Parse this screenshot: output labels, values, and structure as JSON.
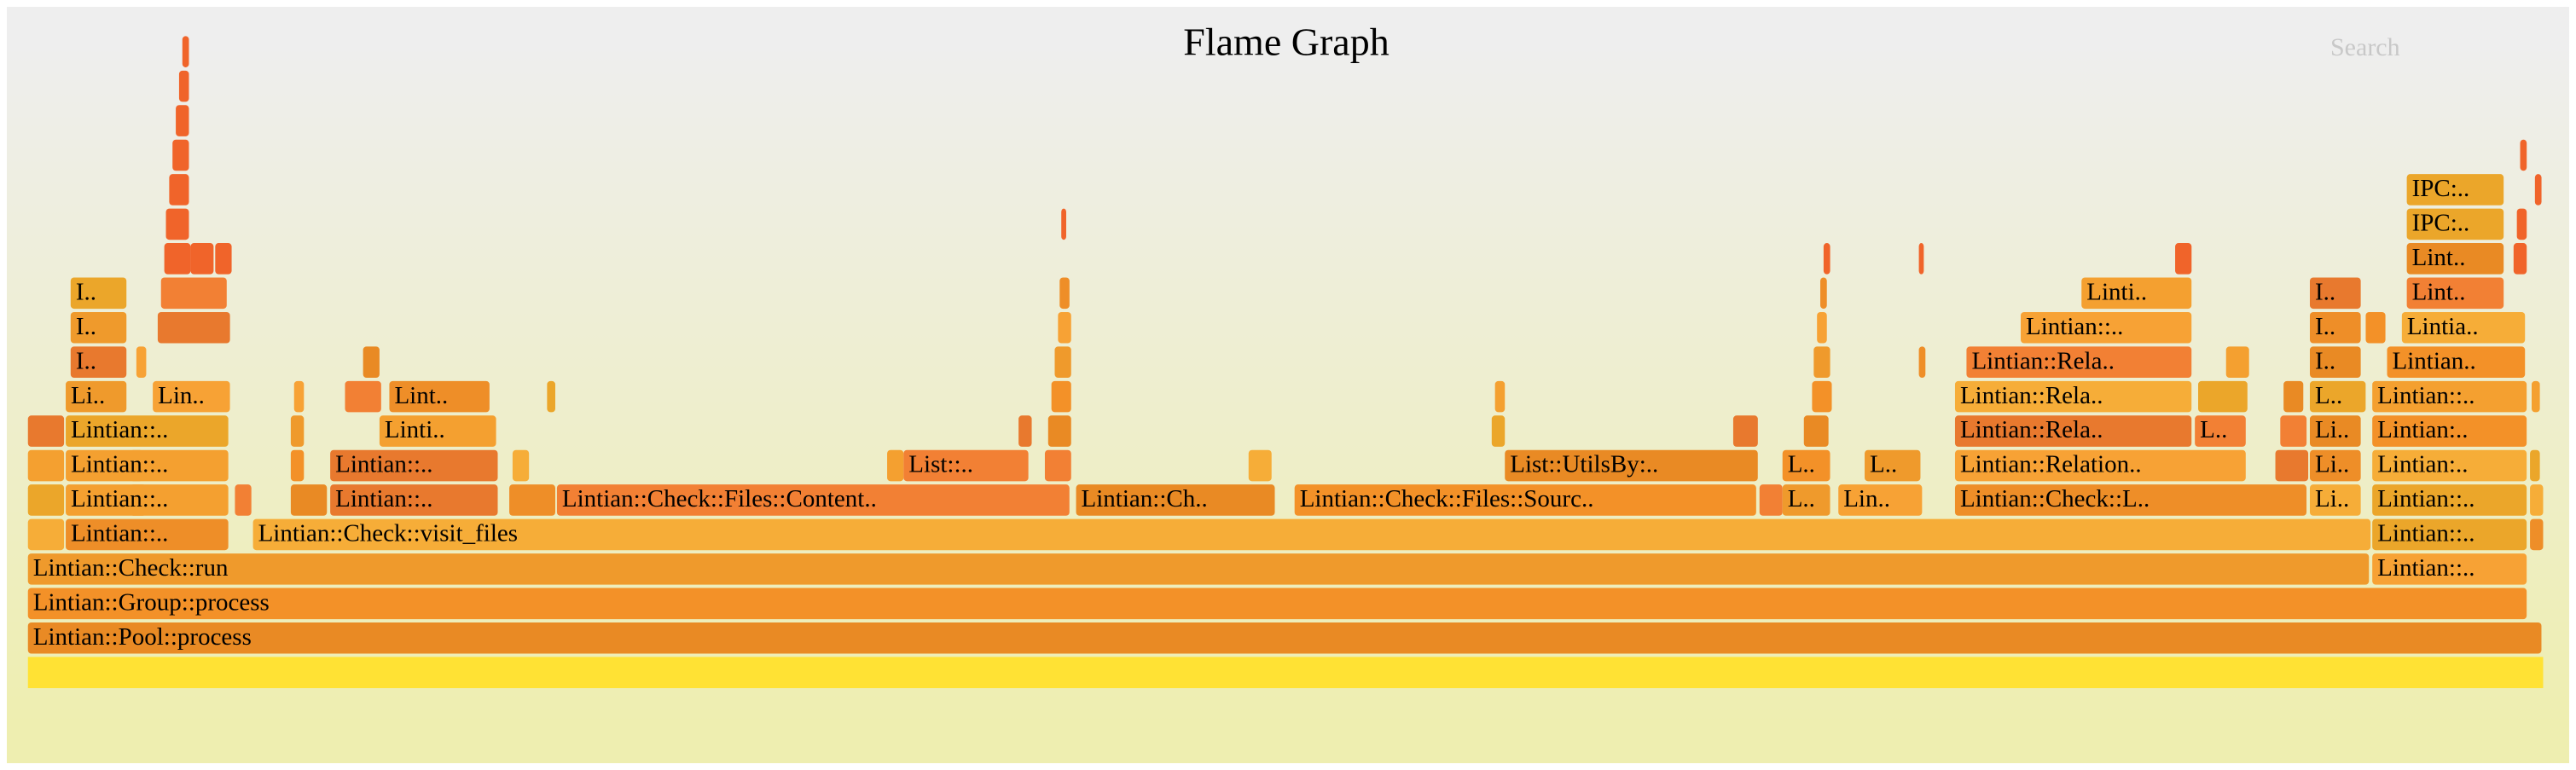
{
  "header": {
    "title": "Flame Graph",
    "search": "Search"
  },
  "frames": [
    {
      "label": "Lintian::Pool::process"
    },
    {
      "label": "Lintian::Group::process"
    },
    {
      "label": "Lintian::Check::run"
    },
    {
      "label": "Lintian::.."
    },
    {
      "label": "Lintian::.."
    },
    {
      "label": "Lintian::Check::visit_files"
    },
    {
      "label": "Lintian::.."
    },
    {
      "label": "Lintian::.."
    },
    {
      "label": "Lintian::.."
    },
    {
      "label": "Lintian::Check::Files::Content.."
    },
    {
      "label": "Lintian::Ch.."
    },
    {
      "label": "Lintian::Check::Files::Sourc.."
    },
    {
      "label": "L.."
    },
    {
      "label": "Lin.."
    },
    {
      "label": "Lintian::Check::L.."
    },
    {
      "label": "Li.."
    },
    {
      "label": "Lintian::.."
    },
    {
      "label": "Lintian::.."
    },
    {
      "label": "Lintian::.."
    },
    {
      "label": "List::.."
    },
    {
      "label": "List::UtilsBy:.."
    },
    {
      "label": "L.."
    },
    {
      "label": "L.."
    },
    {
      "label": "Lintian::Relation.."
    },
    {
      "label": "Li.."
    },
    {
      "label": "Lintian:.."
    },
    {
      "label": "Lintian::.."
    },
    {
      "label": "Linti.."
    },
    {
      "label": "Lintian::Rela.."
    },
    {
      "label": "L.."
    },
    {
      "label": "Li.."
    },
    {
      "label": "Lintian:.."
    },
    {
      "label": "Li.."
    },
    {
      "label": "Lin.."
    },
    {
      "label": "Lint.."
    },
    {
      "label": "Lintian::Rela.."
    },
    {
      "label": "L.."
    },
    {
      "label": "Lintian::.."
    },
    {
      "label": "I.."
    },
    {
      "label": "Lintian::Rela.."
    },
    {
      "label": "I.."
    },
    {
      "label": "Lintian.."
    },
    {
      "label": "I.."
    },
    {
      "label": "Lintian::.."
    },
    {
      "label": "I.."
    },
    {
      "label": "Lintia.."
    },
    {
      "label": "I.."
    },
    {
      "label": "Linti.."
    },
    {
      "label": "I.."
    },
    {
      "label": "Lint.."
    },
    {
      "label": "Lint.."
    },
    {
      "label": "IPC:.."
    },
    {
      "label": "IPC:.."
    }
  ]
}
